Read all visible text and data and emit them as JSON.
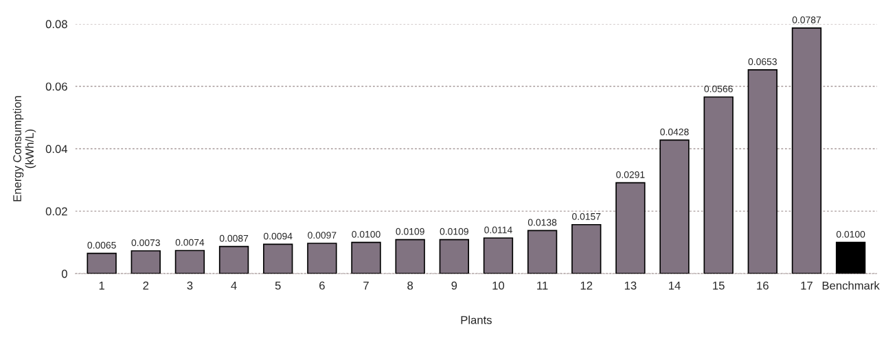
{
  "chart_data": {
    "type": "bar",
    "xlabel": "Plants",
    "ylabel": "Energy Consumption\n(kWh/L)",
    "categories": [
      "1",
      "2",
      "3",
      "4",
      "5",
      "6",
      "7",
      "8",
      "9",
      "10",
      "11",
      "12",
      "13",
      "14",
      "15",
      "16",
      "17",
      "Benchmark"
    ],
    "values": [
      0.0065,
      0.0073,
      0.0074,
      0.0087,
      0.0094,
      0.0097,
      0.01,
      0.0109,
      0.0109,
      0.0114,
      0.0138,
      0.0157,
      0.0291,
      0.0428,
      0.0566,
      0.0653,
      0.0787,
      0.01
    ],
    "value_labels": [
      "0.0065",
      "0.0073",
      "0.0074",
      "0.0087",
      "0.0094",
      "0.0097",
      "0.0100",
      "0.0109",
      "0.0109",
      "0.0114",
      "0.0138",
      "0.0157",
      "0.0291",
      "0.0428",
      "0.0566",
      "0.0653",
      "0.0787",
      "0.0100"
    ],
    "colors": [
      "#817381",
      "#817381",
      "#817381",
      "#817381",
      "#817381",
      "#817381",
      "#817381",
      "#817381",
      "#817381",
      "#817381",
      "#817381",
      "#817381",
      "#817381",
      "#817381",
      "#817381",
      "#817381",
      "#817381",
      "#000000"
    ],
    "ylim": [
      0,
      0.08
    ],
    "yticks": [
      0,
      0.02,
      0.04,
      0.06,
      0.08
    ],
    "grid": "y",
    "legend": false
  }
}
